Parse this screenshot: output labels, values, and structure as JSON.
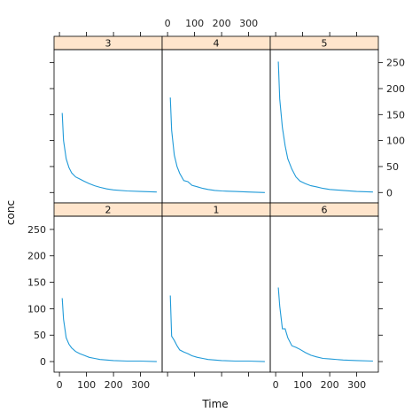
{
  "chart_data": {
    "type": "line",
    "layout": "lattice-trellis",
    "xlabel": "Time",
    "ylabel": "conc",
    "xlim": [
      -20,
      380
    ],
    "ylim": [
      -20,
      275
    ],
    "x_ticks": [
      0,
      100,
      200,
      300
    ],
    "y_ticks": [
      0,
      50,
      100,
      150,
      200,
      250
    ],
    "line_color": "#1f9ad8",
    "strip_color": "#ffe5cc",
    "panels": [
      {
        "label": "3",
        "x": [
          10,
          15,
          25,
          35,
          45,
          60,
          75,
          90,
          110,
          130,
          150,
          175,
          200,
          250,
          300,
          360
        ],
        "y": [
          153,
          100,
          65,
          48,
          38,
          30,
          26,
          22,
          17,
          13,
          10,
          7,
          5,
          3,
          2,
          1
        ]
      },
      {
        "label": "4",
        "x": [
          10,
          15,
          25,
          35,
          45,
          60,
          75,
          90,
          110,
          130,
          150,
          175,
          200,
          250,
          300,
          360
        ],
        "y": [
          183,
          120,
          72,
          50,
          37,
          23,
          21,
          14,
          11,
          8,
          6,
          4,
          3,
          2,
          1,
          0
        ]
      },
      {
        "label": "5",
        "x": [
          10,
          15,
          25,
          35,
          45,
          60,
          75,
          90,
          110,
          130,
          150,
          175,
          200,
          250,
          300,
          360
        ],
        "y": [
          252,
          180,
          125,
          90,
          65,
          45,
          30,
          22,
          17,
          13,
          11,
          8,
          6,
          4,
          2,
          1
        ]
      },
      {
        "label": "2",
        "x": [
          10,
          15,
          25,
          35,
          45,
          60,
          75,
          90,
          110,
          130,
          150,
          175,
          200,
          250,
          300,
          360
        ],
        "y": [
          120,
          80,
          45,
          33,
          26,
          19,
          15,
          12,
          8,
          6,
          4,
          3,
          2,
          1,
          1,
          0
        ]
      },
      {
        "label": "1",
        "x": [
          10,
          15,
          25,
          35,
          45,
          60,
          75,
          90,
          110,
          130,
          150,
          175,
          200,
          250,
          300,
          360
        ],
        "y": [
          125,
          48,
          40,
          30,
          22,
          18,
          15,
          11,
          8,
          6,
          4,
          3,
          2,
          1,
          1,
          0
        ]
      },
      {
        "label": "6",
        "x": [
          10,
          15,
          25,
          35,
          45,
          60,
          75,
          90,
          110,
          130,
          150,
          175,
          200,
          250,
          300,
          360
        ],
        "y": [
          140,
          105,
          62,
          62,
          45,
          30,
          27,
          23,
          17,
          12,
          9,
          6,
          5,
          3,
          2,
          1
        ]
      }
    ]
  }
}
